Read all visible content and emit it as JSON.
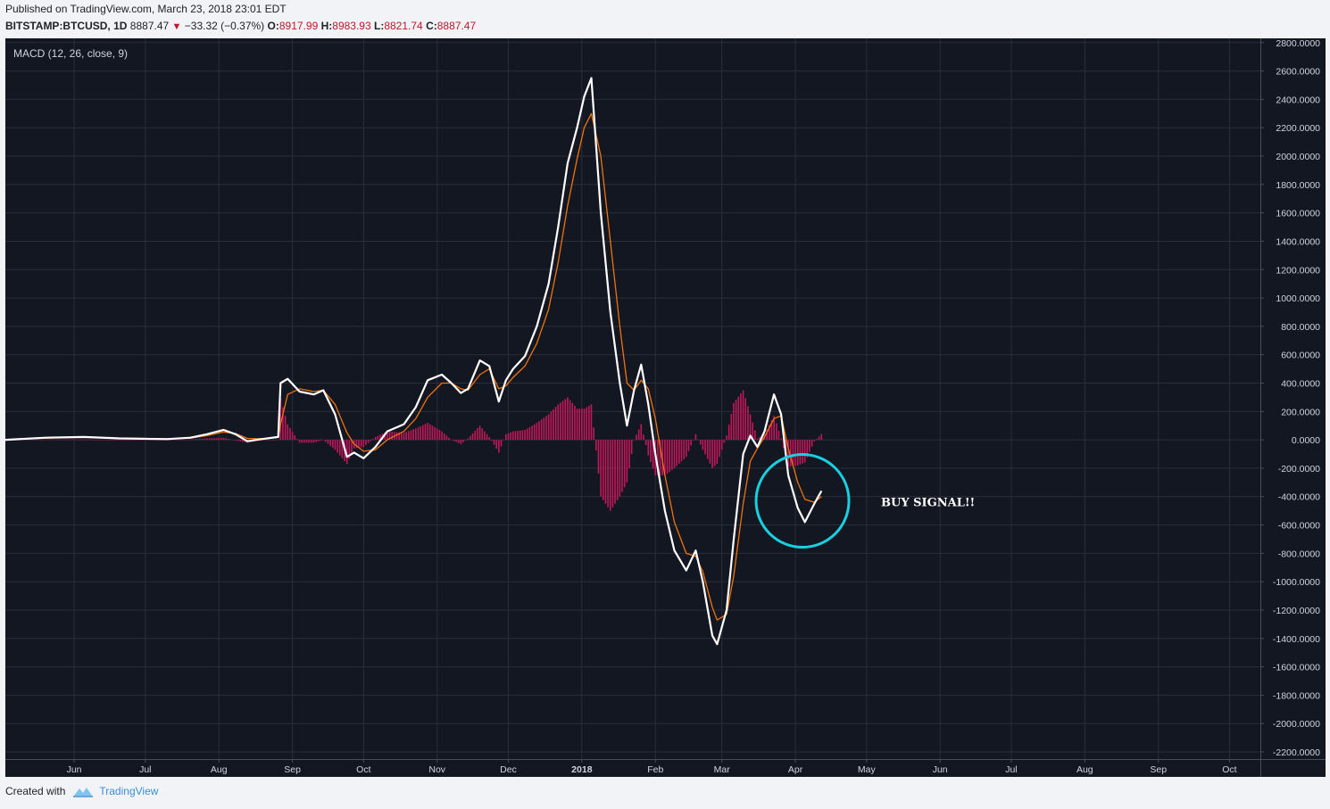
{
  "header": {
    "published": "Published on TradingView.com, March 23, 2018 23:01 EDT",
    "symbol": "BITSTAMP:BTCUSD, 1D",
    "last": "8887.47",
    "change": "−33.32 (−0.37%)",
    "open_label": "O:",
    "open": "8917.99",
    "high_label": "H:",
    "high": "8983.93",
    "low_label": "L:",
    "low": "8821.74",
    "close_label": "C:",
    "close": "8887.47"
  },
  "footer": {
    "created_with": "Created with",
    "brand": "TradingView"
  },
  "colors": {
    "background": "#131722",
    "grid": "#2a2e39",
    "macd_line": "#ffffff",
    "signal_line": "#f0720a",
    "histogram": "#c2185b",
    "annotation_circle": "#19d0e0",
    "axis_text": "#d1d4dc"
  },
  "chart_data": {
    "type": "line",
    "indicator_label": "MACD (12, 26, close, 9)",
    "ylim": [
      -2250,
      2830
    ],
    "y_ticks": [
      "2800.0000",
      "2600.0000",
      "2400.0000",
      "2200.0000",
      "2000.0000",
      "1800.0000",
      "1600.0000",
      "1400.0000",
      "1200.0000",
      "1000.0000",
      "800.0000",
      "600.0000",
      "400.0000",
      "200.0000",
      "0.0000",
      "-200.0000",
      "-400.0000",
      "-600.0000",
      "-800.0000",
      "-1000.0000",
      "-1200.0000",
      "-1400.0000",
      "-1600.0000",
      "-1800.0000",
      "-2000.0000",
      "-2200.0000"
    ],
    "y_tick_values": [
      2800,
      2600,
      2400,
      2200,
      2000,
      1800,
      1600,
      1400,
      1200,
      1000,
      800,
      600,
      400,
      200,
      0,
      -200,
      -400,
      -600,
      -800,
      -1000,
      -1200,
      -1400,
      -1600,
      -1800,
      -2000,
      -2200
    ],
    "x_ticks": [
      {
        "label": "Jun",
        "t": "2017-06-01"
      },
      {
        "label": "Jul",
        "t": "2017-07-01"
      },
      {
        "label": "Aug",
        "t": "2017-08-01"
      },
      {
        "label": "Sep",
        "t": "2017-09-01"
      },
      {
        "label": "Oct",
        "t": "2017-10-01"
      },
      {
        "label": "Nov",
        "t": "2017-11-01"
      },
      {
        "label": "Dec",
        "t": "2017-12-01"
      },
      {
        "label": "2018",
        "t": "2018-01-01"
      },
      {
        "label": "Feb",
        "t": "2018-02-01"
      },
      {
        "label": "Mar",
        "t": "2018-03-01"
      },
      {
        "label": "Apr",
        "t": "2018-04-01"
      },
      {
        "label": "May",
        "t": "2018-05-01"
      },
      {
        "label": "Jun",
        "t": "2018-06-01"
      },
      {
        "label": "Jul",
        "t": "2018-07-01"
      },
      {
        "label": "Aug",
        "t": "2018-08-01"
      },
      {
        "label": "Sep",
        "t": "2018-09-01"
      },
      {
        "label": "Oct",
        "t": "2018-10-01"
      }
    ],
    "xlim": [
      "2017-05-03",
      "2018-10-14"
    ],
    "series": [
      {
        "name": "MACD",
        "points": [
          [
            "2017-05-03",
            0
          ],
          [
            "2017-05-20",
            15
          ],
          [
            "2017-06-05",
            20
          ],
          [
            "2017-06-20",
            10
          ],
          [
            "2017-07-10",
            5
          ],
          [
            "2017-07-20",
            15
          ],
          [
            "2017-07-27",
            40
          ],
          [
            "2017-08-03",
            70
          ],
          [
            "2017-08-08",
            40
          ],
          [
            "2017-08-13",
            -10
          ],
          [
            "2017-08-19",
            5
          ],
          [
            "2017-08-26",
            20
          ],
          [
            "2017-08-27",
            400
          ],
          [
            "2017-08-30",
            430
          ],
          [
            "2017-09-04",
            340
          ],
          [
            "2017-09-10",
            320
          ],
          [
            "2017-09-14",
            350
          ],
          [
            "2017-09-19",
            180
          ],
          [
            "2017-09-24",
            -120
          ],
          [
            "2017-09-27",
            -90
          ],
          [
            "2017-10-01",
            -130
          ],
          [
            "2017-10-06",
            -50
          ],
          [
            "2017-10-11",
            60
          ],
          [
            "2017-10-18",
            110
          ],
          [
            "2017-10-23",
            230
          ],
          [
            "2017-10-28",
            420
          ],
          [
            "2017-11-03",
            460
          ],
          [
            "2017-11-07",
            400
          ],
          [
            "2017-11-11",
            330
          ],
          [
            "2017-11-14",
            360
          ],
          [
            "2017-11-19",
            560
          ],
          [
            "2017-11-23",
            520
          ],
          [
            "2017-11-27",
            270
          ],
          [
            "2017-11-30",
            420
          ],
          [
            "2017-12-03",
            500
          ],
          [
            "2017-12-08",
            590
          ],
          [
            "2017-12-13",
            800
          ],
          [
            "2017-12-18",
            1100
          ],
          [
            "2017-12-22",
            1500
          ],
          [
            "2017-12-26",
            1950
          ],
          [
            "2017-12-30",
            2200
          ],
          [
            "2018-01-02",
            2420
          ],
          [
            "2018-01-05",
            2550
          ],
          [
            "2018-01-09",
            1600
          ],
          [
            "2018-01-13",
            900
          ],
          [
            "2018-01-17",
            400
          ],
          [
            "2018-01-20",
            100
          ],
          [
            "2018-01-23",
            350
          ],
          [
            "2018-01-26",
            530
          ],
          [
            "2018-01-29",
            250
          ],
          [
            "2018-02-01",
            -100
          ],
          [
            "2018-02-05",
            -500
          ],
          [
            "2018-02-09",
            -780
          ],
          [
            "2018-02-14",
            -920
          ],
          [
            "2018-02-18",
            -780
          ],
          [
            "2018-02-21",
            -1000
          ],
          [
            "2018-02-25",
            -1380
          ],
          [
            "2018-02-27",
            -1440
          ],
          [
            "2018-03-03",
            -1200
          ],
          [
            "2018-03-06",
            -700
          ],
          [
            "2018-03-10",
            -100
          ],
          [
            "2018-03-13",
            30
          ],
          [
            "2018-03-16",
            -50
          ],
          [
            "2018-03-19",
            60
          ],
          [
            "2018-03-23",
            320
          ],
          [
            "2018-03-26",
            180
          ],
          [
            "2018-03-29",
            -250
          ],
          [
            "2018-04-02",
            -480
          ],
          [
            "2018-04-05",
            -580
          ],
          [
            "2018-04-09",
            -450
          ],
          [
            "2018-04-12",
            -360
          ]
        ]
      },
      {
        "name": "Signal",
        "points": [
          [
            "2017-05-03",
            0
          ],
          [
            "2017-05-20",
            12
          ],
          [
            "2017-06-05",
            18
          ],
          [
            "2017-06-20",
            12
          ],
          [
            "2017-07-10",
            8
          ],
          [
            "2017-07-20",
            12
          ],
          [
            "2017-07-27",
            30
          ],
          [
            "2017-08-03",
            55
          ],
          [
            "2017-08-08",
            45
          ],
          [
            "2017-08-13",
            10
          ],
          [
            "2017-08-19",
            8
          ],
          [
            "2017-08-26",
            18
          ],
          [
            "2017-08-27",
            110
          ],
          [
            "2017-08-30",
            320
          ],
          [
            "2017-09-04",
            360
          ],
          [
            "2017-09-10",
            340
          ],
          [
            "2017-09-14",
            350
          ],
          [
            "2017-09-19",
            250
          ],
          [
            "2017-09-24",
            50
          ],
          [
            "2017-09-27",
            -30
          ],
          [
            "2017-10-01",
            -80
          ],
          [
            "2017-10-06",
            -70
          ],
          [
            "2017-10-11",
            0
          ],
          [
            "2017-10-18",
            60
          ],
          [
            "2017-10-23",
            150
          ],
          [
            "2017-10-28",
            300
          ],
          [
            "2017-11-03",
            400
          ],
          [
            "2017-11-07",
            400
          ],
          [
            "2017-11-11",
            360
          ],
          [
            "2017-11-14",
            350
          ],
          [
            "2017-11-19",
            460
          ],
          [
            "2017-11-23",
            500
          ],
          [
            "2017-11-27",
            360
          ],
          [
            "2017-11-30",
            380
          ],
          [
            "2017-12-03",
            440
          ],
          [
            "2017-12-08",
            520
          ],
          [
            "2017-12-13",
            680
          ],
          [
            "2017-12-18",
            920
          ],
          [
            "2017-12-22",
            1250
          ],
          [
            "2017-12-26",
            1650
          ],
          [
            "2017-12-30",
            1980
          ],
          [
            "2018-01-02",
            2200
          ],
          [
            "2018-01-05",
            2300
          ],
          [
            "2018-01-09",
            2000
          ],
          [
            "2018-01-13",
            1400
          ],
          [
            "2018-01-17",
            800
          ],
          [
            "2018-01-20",
            400
          ],
          [
            "2018-01-23",
            350
          ],
          [
            "2018-01-26",
            420
          ],
          [
            "2018-01-29",
            360
          ],
          [
            "2018-02-01",
            150
          ],
          [
            "2018-02-05",
            -250
          ],
          [
            "2018-02-09",
            -580
          ],
          [
            "2018-02-14",
            -800
          ],
          [
            "2018-02-18",
            -820
          ],
          [
            "2018-02-21",
            -930
          ],
          [
            "2018-02-25",
            -1180
          ],
          [
            "2018-02-27",
            -1270
          ],
          [
            "2018-03-03",
            -1230
          ],
          [
            "2018-03-06",
            -960
          ],
          [
            "2018-03-10",
            -450
          ],
          [
            "2018-03-13",
            -150
          ],
          [
            "2018-03-16",
            -60
          ],
          [
            "2018-03-19",
            20
          ],
          [
            "2018-03-23",
            150
          ],
          [
            "2018-03-26",
            170
          ],
          [
            "2018-03-29",
            -60
          ],
          [
            "2018-04-02",
            -300
          ],
          [
            "2018-04-05",
            -420
          ],
          [
            "2018-04-09",
            -440
          ],
          [
            "2018-04-12",
            -400
          ]
        ]
      }
    ],
    "histogram_color": "#c2185b",
    "annotation": {
      "text": "BUY SIGNAL!!",
      "circle_center": [
        "2018-04-04",
        -430
      ],
      "circle_color": "#19d0e0"
    }
  }
}
